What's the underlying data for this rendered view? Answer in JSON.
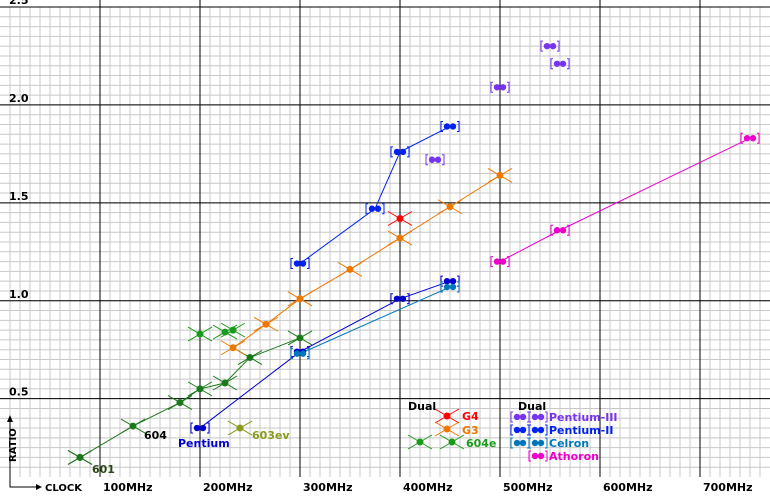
{
  "chart_data": {
    "type": "scatter",
    "xlabel": "CLOCK",
    "ylabel": "RATIO",
    "xlim": [
      0,
      770
    ],
    "ylim": [
      0.1,
      2.5
    ],
    "x_ticks": [
      100,
      200,
      300,
      400,
      500,
      600,
      700
    ],
    "x_tick_labels": [
      "100MHz",
      "200MHz",
      "300MHz",
      "400MHz",
      "500MHz",
      "600MHz",
      "700MHz"
    ],
    "y_ticks": [
      0.5,
      1.0,
      1.5,
      2.0,
      2.5
    ],
    "y_tick_labels": [
      "0.5",
      "1.0",
      "1.5",
      "2.0",
      "2.5"
    ],
    "grid": true,
    "series": [
      {
        "name": "601",
        "color": "#2a4a1a",
        "marker": "x",
        "connect": true,
        "points": [
          [
            80,
            0.2
          ]
        ]
      },
      {
        "name": "604",
        "color": "#1a7a1a",
        "marker": "x",
        "connect": true,
        "points": [
          [
            80,
            0.2
          ],
          [
            133,
            0.36
          ],
          [
            180,
            0.48
          ],
          [
            200,
            0.55
          ],
          [
            225,
            0.58
          ],
          [
            250,
            0.71
          ],
          [
            300,
            0.81
          ]
        ]
      },
      {
        "name": "604e",
        "color": "#1a9a1a",
        "marker": "x",
        "connect": false,
        "points": [
          [
            200,
            0.83
          ],
          [
            225,
            0.84
          ],
          [
            233,
            0.85
          ]
        ]
      },
      {
        "name": "603ev",
        "color": "#8a9a1a",
        "marker": "x",
        "connect": false,
        "points": [
          [
            240,
            0.35
          ]
        ]
      },
      {
        "name": "G4",
        "color": "#ff0000",
        "marker": "x",
        "connect": false,
        "points": [
          [
            400,
            1.42
          ]
        ]
      },
      {
        "name": "G3",
        "color": "#ee7700",
        "marker": "x",
        "connect": true,
        "points": [
          [
            233,
            0.76
          ],
          [
            266,
            0.88
          ],
          [
            300,
            1.01
          ],
          [
            350,
            1.16
          ],
          [
            400,
            1.32
          ],
          [
            450,
            1.48
          ],
          [
            500,
            1.64
          ]
        ]
      },
      {
        "name": "Pentium",
        "color": "#0000cc",
        "marker": "dual",
        "connect": true,
        "points": [
          [
            200,
            0.35
          ],
          [
            300,
            0.74
          ],
          [
            400,
            1.01
          ],
          [
            450,
            1.1
          ]
        ]
      },
      {
        "name": "Pentium-II",
        "color": "#0022ee",
        "marker": "dual",
        "connect": true,
        "points": [
          [
            300,
            1.19
          ],
          [
            375,
            1.47
          ],
          [
            400,
            1.76
          ],
          [
            450,
            1.89
          ]
        ]
      },
      {
        "name": "Celron",
        "color": "#0077bb",
        "marker": "dual",
        "connect": true,
        "points": [
          [
            300,
            0.73
          ],
          [
            450,
            1.07
          ]
        ]
      },
      {
        "name": "Pentium-III",
        "color": "#7733ee",
        "marker": "dual",
        "connect": false,
        "points": [
          [
            500,
            2.09
          ],
          [
            550,
            2.3
          ],
          [
            560,
            2.21
          ],
          [
            435,
            1.72
          ]
        ]
      },
      {
        "name": "Athoron",
        "color": "#ee00cc",
        "marker": "dual",
        "connect": true,
        "points": [
          [
            500,
            1.2
          ],
          [
            560,
            1.36
          ],
          [
            750,
            1.83
          ]
        ]
      }
    ],
    "annotations": [
      {
        "text": "601",
        "color": "#2a4a1a"
      },
      {
        "text": "604",
        "color": "#000000"
      },
      {
        "text": "Pentium",
        "color": "#0000cc"
      },
      {
        "text": "603ev",
        "color": "#8a9a1a"
      },
      {
        "text": "604e",
        "color": "#1a9a1a"
      },
      {
        "text": "G4",
        "color": "#ff0000"
      },
      {
        "text": "G3",
        "color": "#ee7700"
      },
      {
        "text": "Dual",
        "color": "#000000"
      },
      {
        "text": "Dual",
        "color": "#000000"
      },
      {
        "text": "Pentium-III",
        "color": "#7733ee"
      },
      {
        "text": "Pentium-II",
        "color": "#0022ee"
      },
      {
        "text": "Celron",
        "color": "#0077bb"
      },
      {
        "text": "Athoron",
        "color": "#ee00cc"
      }
    ]
  }
}
